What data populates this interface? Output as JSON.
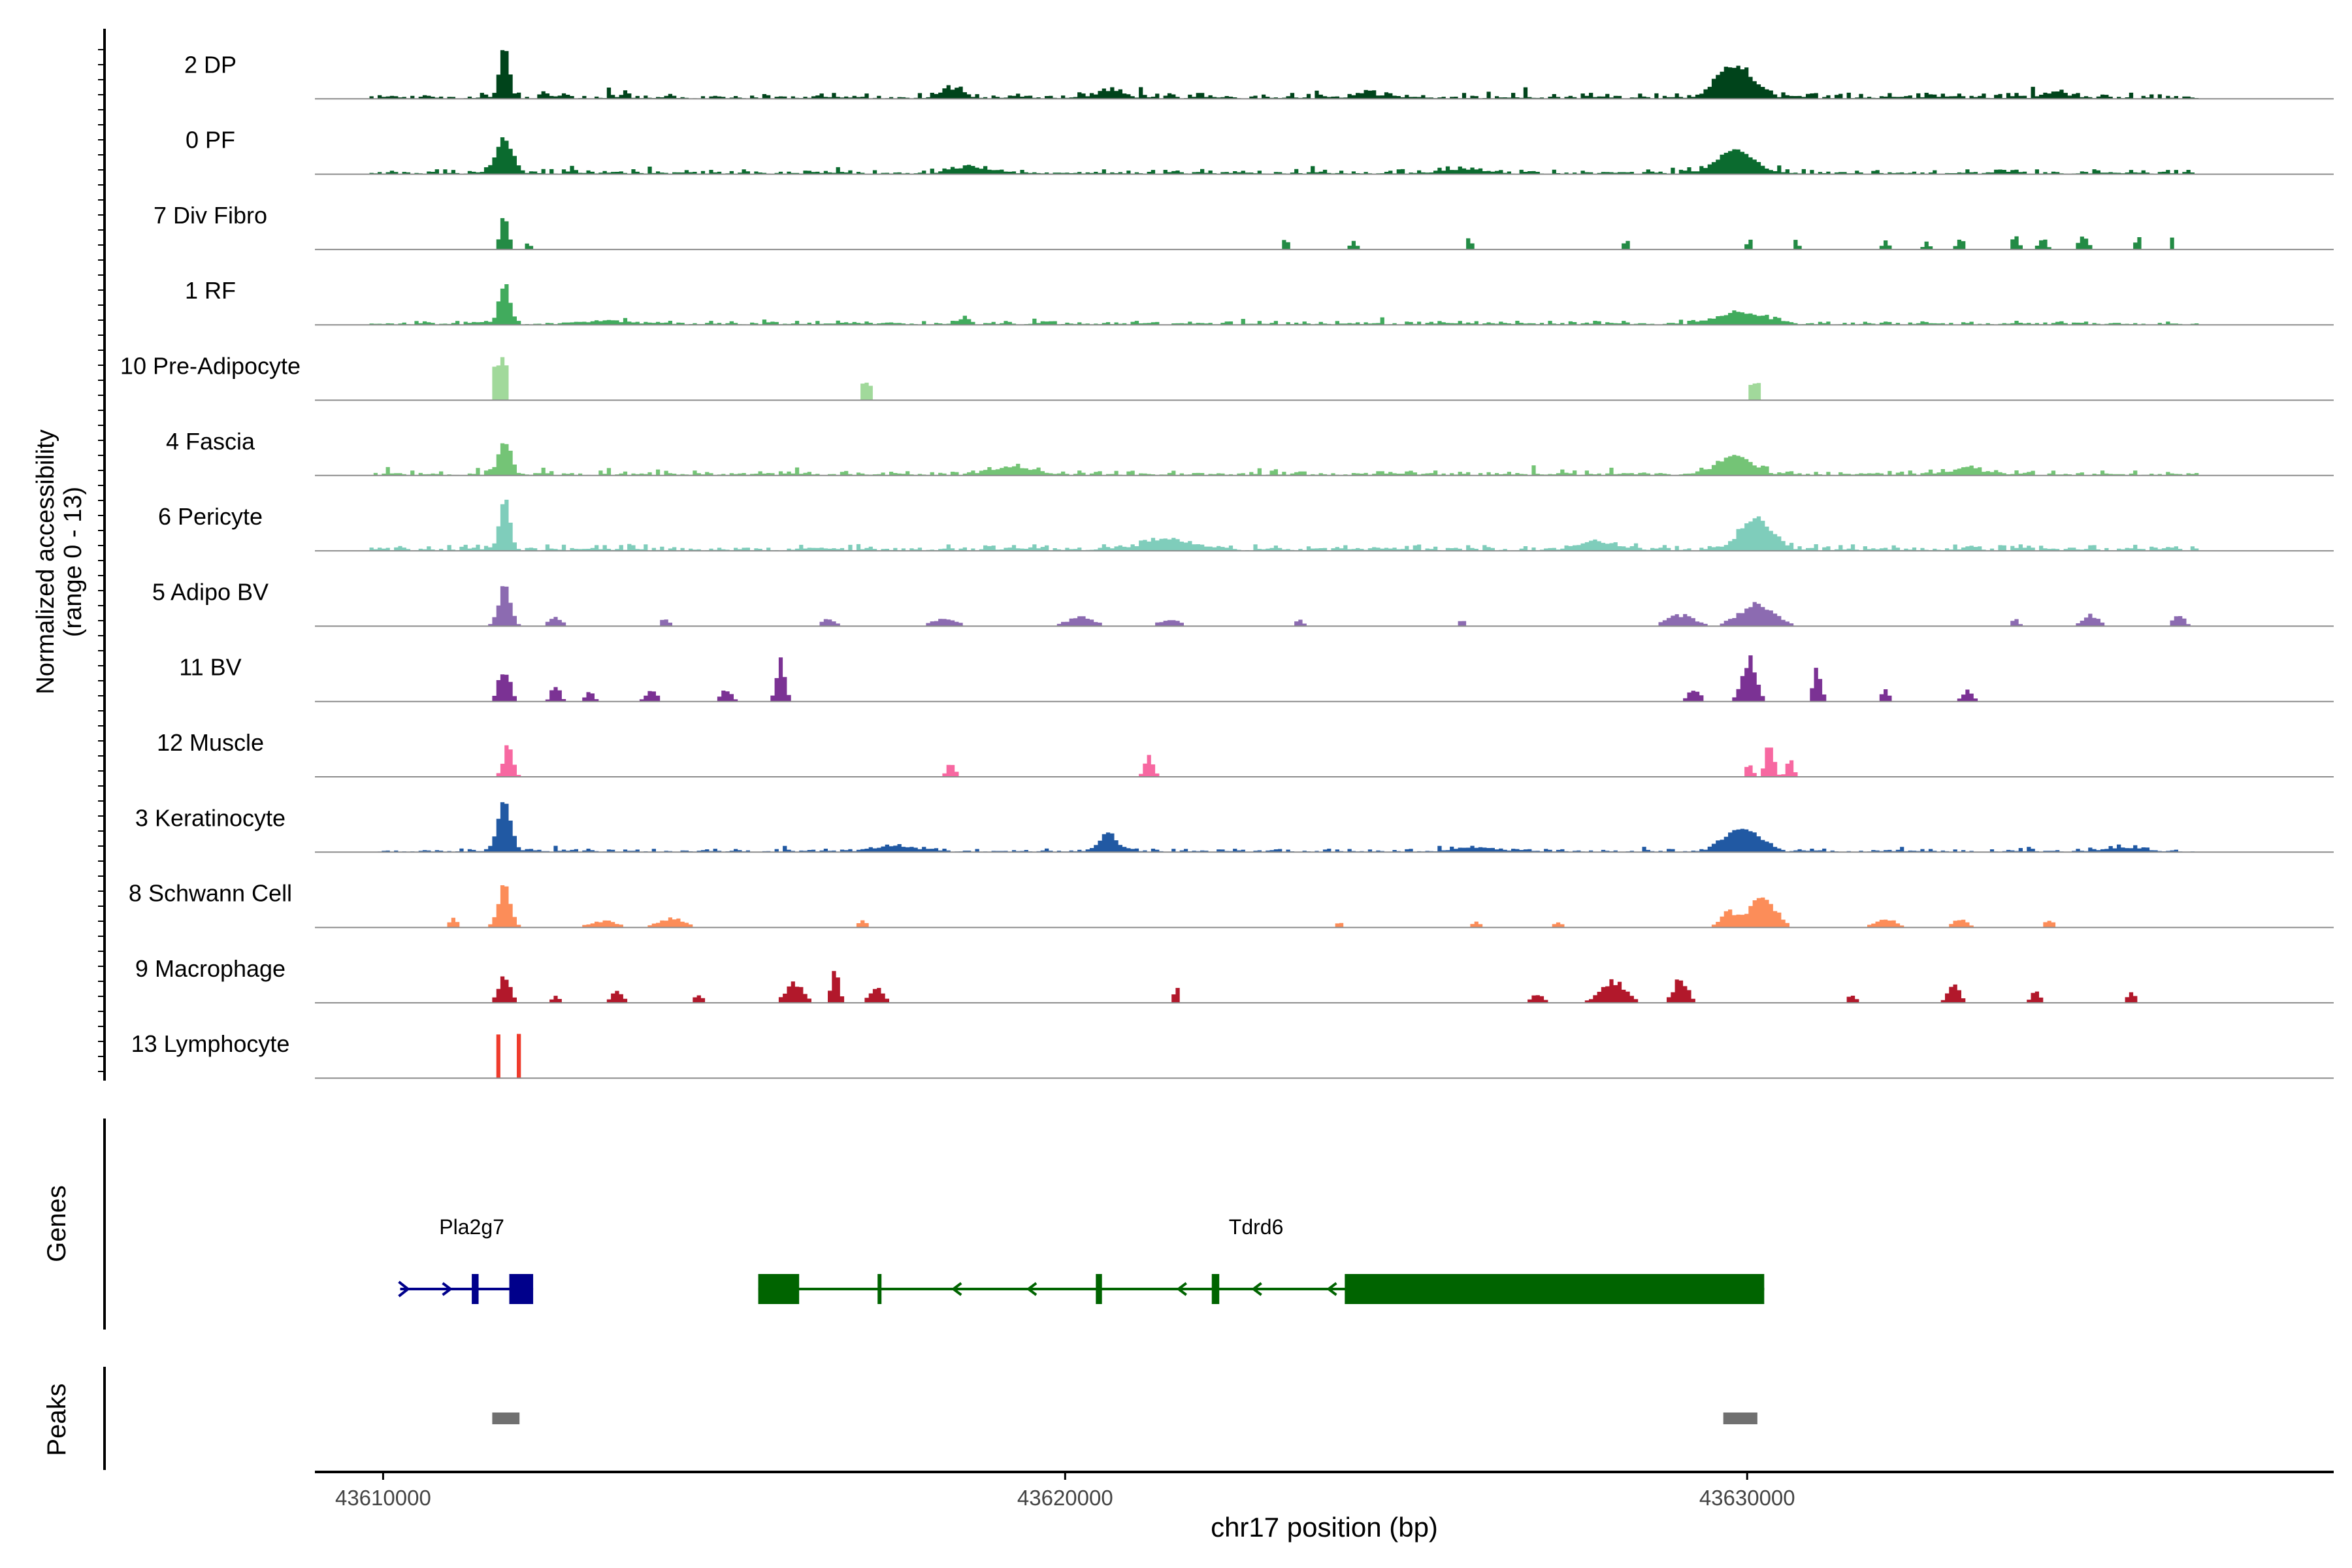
{
  "chart_data": {
    "type": "coverage-track",
    "title": "",
    "chromosome": "chr17",
    "xlabel": "chr17 position (bp)",
    "xlim": [
      43609000,
      43638600
    ],
    "xticks": [
      43610000,
      43620000,
      43630000
    ],
    "ylabel_line1": "Normalized accessibility",
    "ylabel_line2": "(range 0 - 13)",
    "yrange": [
      0,
      13
    ],
    "tracks": [
      {
        "name": "2 DP",
        "color": "#00441b",
        "mode": "continuous",
        "baseline": 0.35,
        "noise": 0.12,
        "peaks": [
          [
            43611750,
            1.0,
            70
          ],
          [
            43629800,
            0.6,
            260
          ],
          [
            43618350,
            0.18,
            150
          ],
          [
            43620600,
            0.12,
            200
          ],
          [
            43624400,
            0.08,
            200
          ],
          [
            43634500,
            0.1,
            200
          ]
        ]
      },
      {
        "name": "0 PF",
        "color": "#0b6b2f",
        "mode": "continuous",
        "baseline": 0.35,
        "noise": 0.1,
        "peaks": [
          [
            43611750,
            0.65,
            120
          ],
          [
            43629800,
            0.45,
            260
          ],
          [
            43618600,
            0.1,
            300
          ],
          [
            43625800,
            0.08,
            300
          ]
        ]
      },
      {
        "name": "7 Div Fibro",
        "color": "#238b45",
        "mode": "sparse",
        "peaks": [
          [
            43611750,
            0.7,
            60
          ],
          [
            43612100,
            0.2,
            30
          ],
          [
            43623200,
            0.25,
            40
          ],
          [
            43624200,
            0.2,
            50
          ],
          [
            43625900,
            0.3,
            30
          ],
          [
            43628200,
            0.3,
            30
          ],
          [
            43630000,
            0.25,
            30
          ],
          [
            43630700,
            0.25,
            30
          ],
          [
            43632000,
            0.2,
            50
          ],
          [
            43632600,
            0.2,
            40
          ],
          [
            43633100,
            0.25,
            50
          ],
          [
            43633900,
            0.3,
            50
          ],
          [
            43634300,
            0.25,
            60
          ],
          [
            43634900,
            0.35,
            60
          ],
          [
            43635700,
            0.3,
            40
          ],
          [
            43636200,
            0.25,
            30
          ]
        ]
      },
      {
        "name": "1 RF",
        "color": "#41ab5d",
        "mode": "continuous",
        "baseline": 0.25,
        "noise": 0.08,
        "peaks": [
          [
            43611750,
            0.75,
            80
          ],
          [
            43629900,
            0.22,
            350
          ],
          [
            43618500,
            0.15,
            60
          ],
          [
            43613200,
            0.06,
            400
          ]
        ]
      },
      {
        "name": "10 Pre-Adipocyte",
        "color": "#a1d99b",
        "mode": "blocks",
        "peaks": [
          [
            43611700,
            0.85,
            110
          ],
          [
            43617080,
            0.35,
            80
          ],
          [
            43630080,
            0.35,
            80
          ]
        ]
      },
      {
        "name": "4 Fascia",
        "color": "#74c476",
        "mode": "continuous",
        "baseline": 0.28,
        "noise": 0.1,
        "peaks": [
          [
            43611750,
            0.65,
            90
          ],
          [
            43629800,
            0.35,
            260
          ],
          [
            43619200,
            0.15,
            300
          ],
          [
            43633200,
            0.1,
            300
          ]
        ]
      },
      {
        "name": "6 Pericyte",
        "color": "#7fcdbb",
        "mode": "continuous",
        "baseline": 0.3,
        "noise": 0.13,
        "peaks": [
          [
            43611750,
            1.0,
            70
          ],
          [
            43630100,
            0.6,
            220
          ],
          [
            43621500,
            0.18,
            400
          ],
          [
            43627800,
            0.15,
            300
          ]
        ]
      },
      {
        "name": "5 Adipo BV",
        "color": "#8c6bb1",
        "mode": "sparse",
        "peaks": [
          [
            43611750,
            0.85,
            90
          ],
          [
            43612500,
            0.2,
            100
          ],
          [
            43614100,
            0.18,
            60
          ],
          [
            43616500,
            0.15,
            100
          ],
          [
            43618200,
            0.15,
            200
          ],
          [
            43620200,
            0.2,
            200
          ],
          [
            43621500,
            0.15,
            150
          ],
          [
            43623400,
            0.15,
            60
          ],
          [
            43625800,
            0.15,
            50
          ],
          [
            43629000,
            0.25,
            200
          ],
          [
            43630100,
            0.5,
            250
          ],
          [
            43633900,
            0.2,
            50
          ],
          [
            43635000,
            0.25,
            120
          ],
          [
            43636300,
            0.25,
            80
          ]
        ]
      },
      {
        "name": "11 BV",
        "color": "#7b3294",
        "mode": "sparse",
        "peaks": [
          [
            43611750,
            0.8,
            80
          ],
          [
            43612500,
            0.4,
            60
          ],
          [
            43613000,
            0.25,
            60
          ],
          [
            43613900,
            0.25,
            80
          ],
          [
            43615000,
            0.25,
            80
          ],
          [
            43615800,
            1.0,
            60
          ],
          [
            43629200,
            0.3,
            80
          ],
          [
            43630000,
            1.0,
            100
          ],
          [
            43631000,
            0.7,
            60
          ],
          [
            43632000,
            0.25,
            60
          ],
          [
            43633200,
            0.25,
            80
          ]
        ]
      },
      {
        "name": "12 Muscle",
        "color": "#f768a1",
        "mode": "sparse",
        "peaks": [
          [
            43611800,
            0.7,
            70
          ],
          [
            43618300,
            0.3,
            60
          ],
          [
            43621200,
            0.55,
            60
          ],
          [
            43630000,
            0.3,
            50
          ],
          [
            43630300,
            0.75,
            60
          ],
          [
            43630600,
            0.45,
            50
          ]
        ]
      },
      {
        "name": "3 Keratinocyte",
        "color": "#2159a3",
        "mode": "continuous",
        "baseline": 0.2,
        "noise": 0.07,
        "peaks": [
          [
            43611750,
            1.0,
            90
          ],
          [
            43620600,
            0.35,
            120
          ],
          [
            43629900,
            0.45,
            250
          ],
          [
            43617500,
            0.1,
            300
          ],
          [
            43626000,
            0.08,
            300
          ],
          [
            43635500,
            0.08,
            300
          ]
        ]
      },
      {
        "name": "8 Schwann Cell",
        "color": "#fc8d59",
        "mode": "sparse",
        "peaks": [
          [
            43611000,
            0.2,
            60
          ],
          [
            43611750,
            1.0,
            90
          ],
          [
            43613200,
            0.15,
            200
          ],
          [
            43614200,
            0.2,
            200
          ],
          [
            43617000,
            0.15,
            80
          ],
          [
            43624000,
            0.12,
            60
          ],
          [
            43626000,
            0.12,
            60
          ],
          [
            43627200,
            0.12,
            60
          ],
          [
            43629700,
            0.35,
            120
          ],
          [
            43630200,
            0.75,
            180
          ],
          [
            43632000,
            0.2,
            150
          ],
          [
            43633100,
            0.2,
            100
          ],
          [
            43634400,
            0.15,
            80
          ]
        ]
      },
      {
        "name": "9 Macrophage",
        "color": "#b2182b",
        "mode": "sparse",
        "peaks": [
          [
            43611750,
            0.55,
            90
          ],
          [
            43612500,
            0.15,
            60
          ],
          [
            43613400,
            0.25,
            80
          ],
          [
            43614600,
            0.2,
            60
          ],
          [
            43616000,
            0.45,
            120
          ],
          [
            43616600,
            0.7,
            60
          ],
          [
            43617200,
            0.35,
            100
          ],
          [
            43621600,
            0.35,
            40
          ],
          [
            43626900,
            0.2,
            80
          ],
          [
            43628000,
            0.5,
            180
          ],
          [
            43629000,
            0.55,
            100
          ],
          [
            43631500,
            0.2,
            60
          ],
          [
            43633000,
            0.5,
            80
          ],
          [
            43634200,
            0.25,
            60
          ],
          [
            43635600,
            0.25,
            60
          ]
        ]
      },
      {
        "name": "13 Lymphocyte",
        "color": "#ef3b2c",
        "mode": "blocks",
        "peaks": [
          [
            43611650,
            0.95,
            45
          ],
          [
            43611950,
            0.95,
            45
          ]
        ]
      }
    ],
    "genes_label": "Genes",
    "genes": [
      {
        "name": "Pla2g7",
        "strand": "+",
        "color": "#00008b",
        "start": 43610250,
        "end": 43612200,
        "label_pos": 43611300,
        "exons": [
          [
            43611300,
            43611400
          ],
          [
            43611850,
            43612200
          ]
        ]
      },
      {
        "name": "Tdrd6",
        "strand": "-",
        "color": "#006400",
        "start": 43615500,
        "end": 43630250,
        "label_pos": 43622800,
        "exons": [
          [
            43615500,
            43616100
          ],
          [
            43617250,
            43617290
          ],
          [
            43620450,
            43620540
          ],
          [
            43622150,
            43622260
          ],
          [
            43624100,
            43630250
          ]
        ]
      }
    ],
    "peaks_label": "Peaks",
    "peak_regions": [
      [
        43611600,
        43612000
      ],
      [
        43629650,
        43630150
      ]
    ],
    "peak_color": "#707070"
  }
}
